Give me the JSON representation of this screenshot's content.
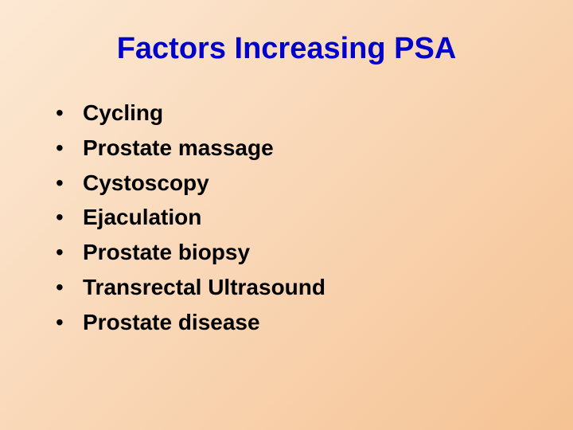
{
  "slide": {
    "title": "Factors Increasing PSA",
    "title_color": "#0000cc",
    "bullet_color": "#000000",
    "text_color": "#000000",
    "background_gradient_start": "#fce9d4",
    "background_gradient_mid": "#f9d6b5",
    "background_gradient_end": "#f5c394",
    "title_fontsize": 38,
    "bullet_fontsize": 28,
    "bullets": [
      "Cycling",
      "Prostate massage",
      "Cystoscopy",
      "Ejaculation",
      "Prostate biopsy",
      "Transrectal Ultrasound",
      "Prostate disease"
    ]
  }
}
